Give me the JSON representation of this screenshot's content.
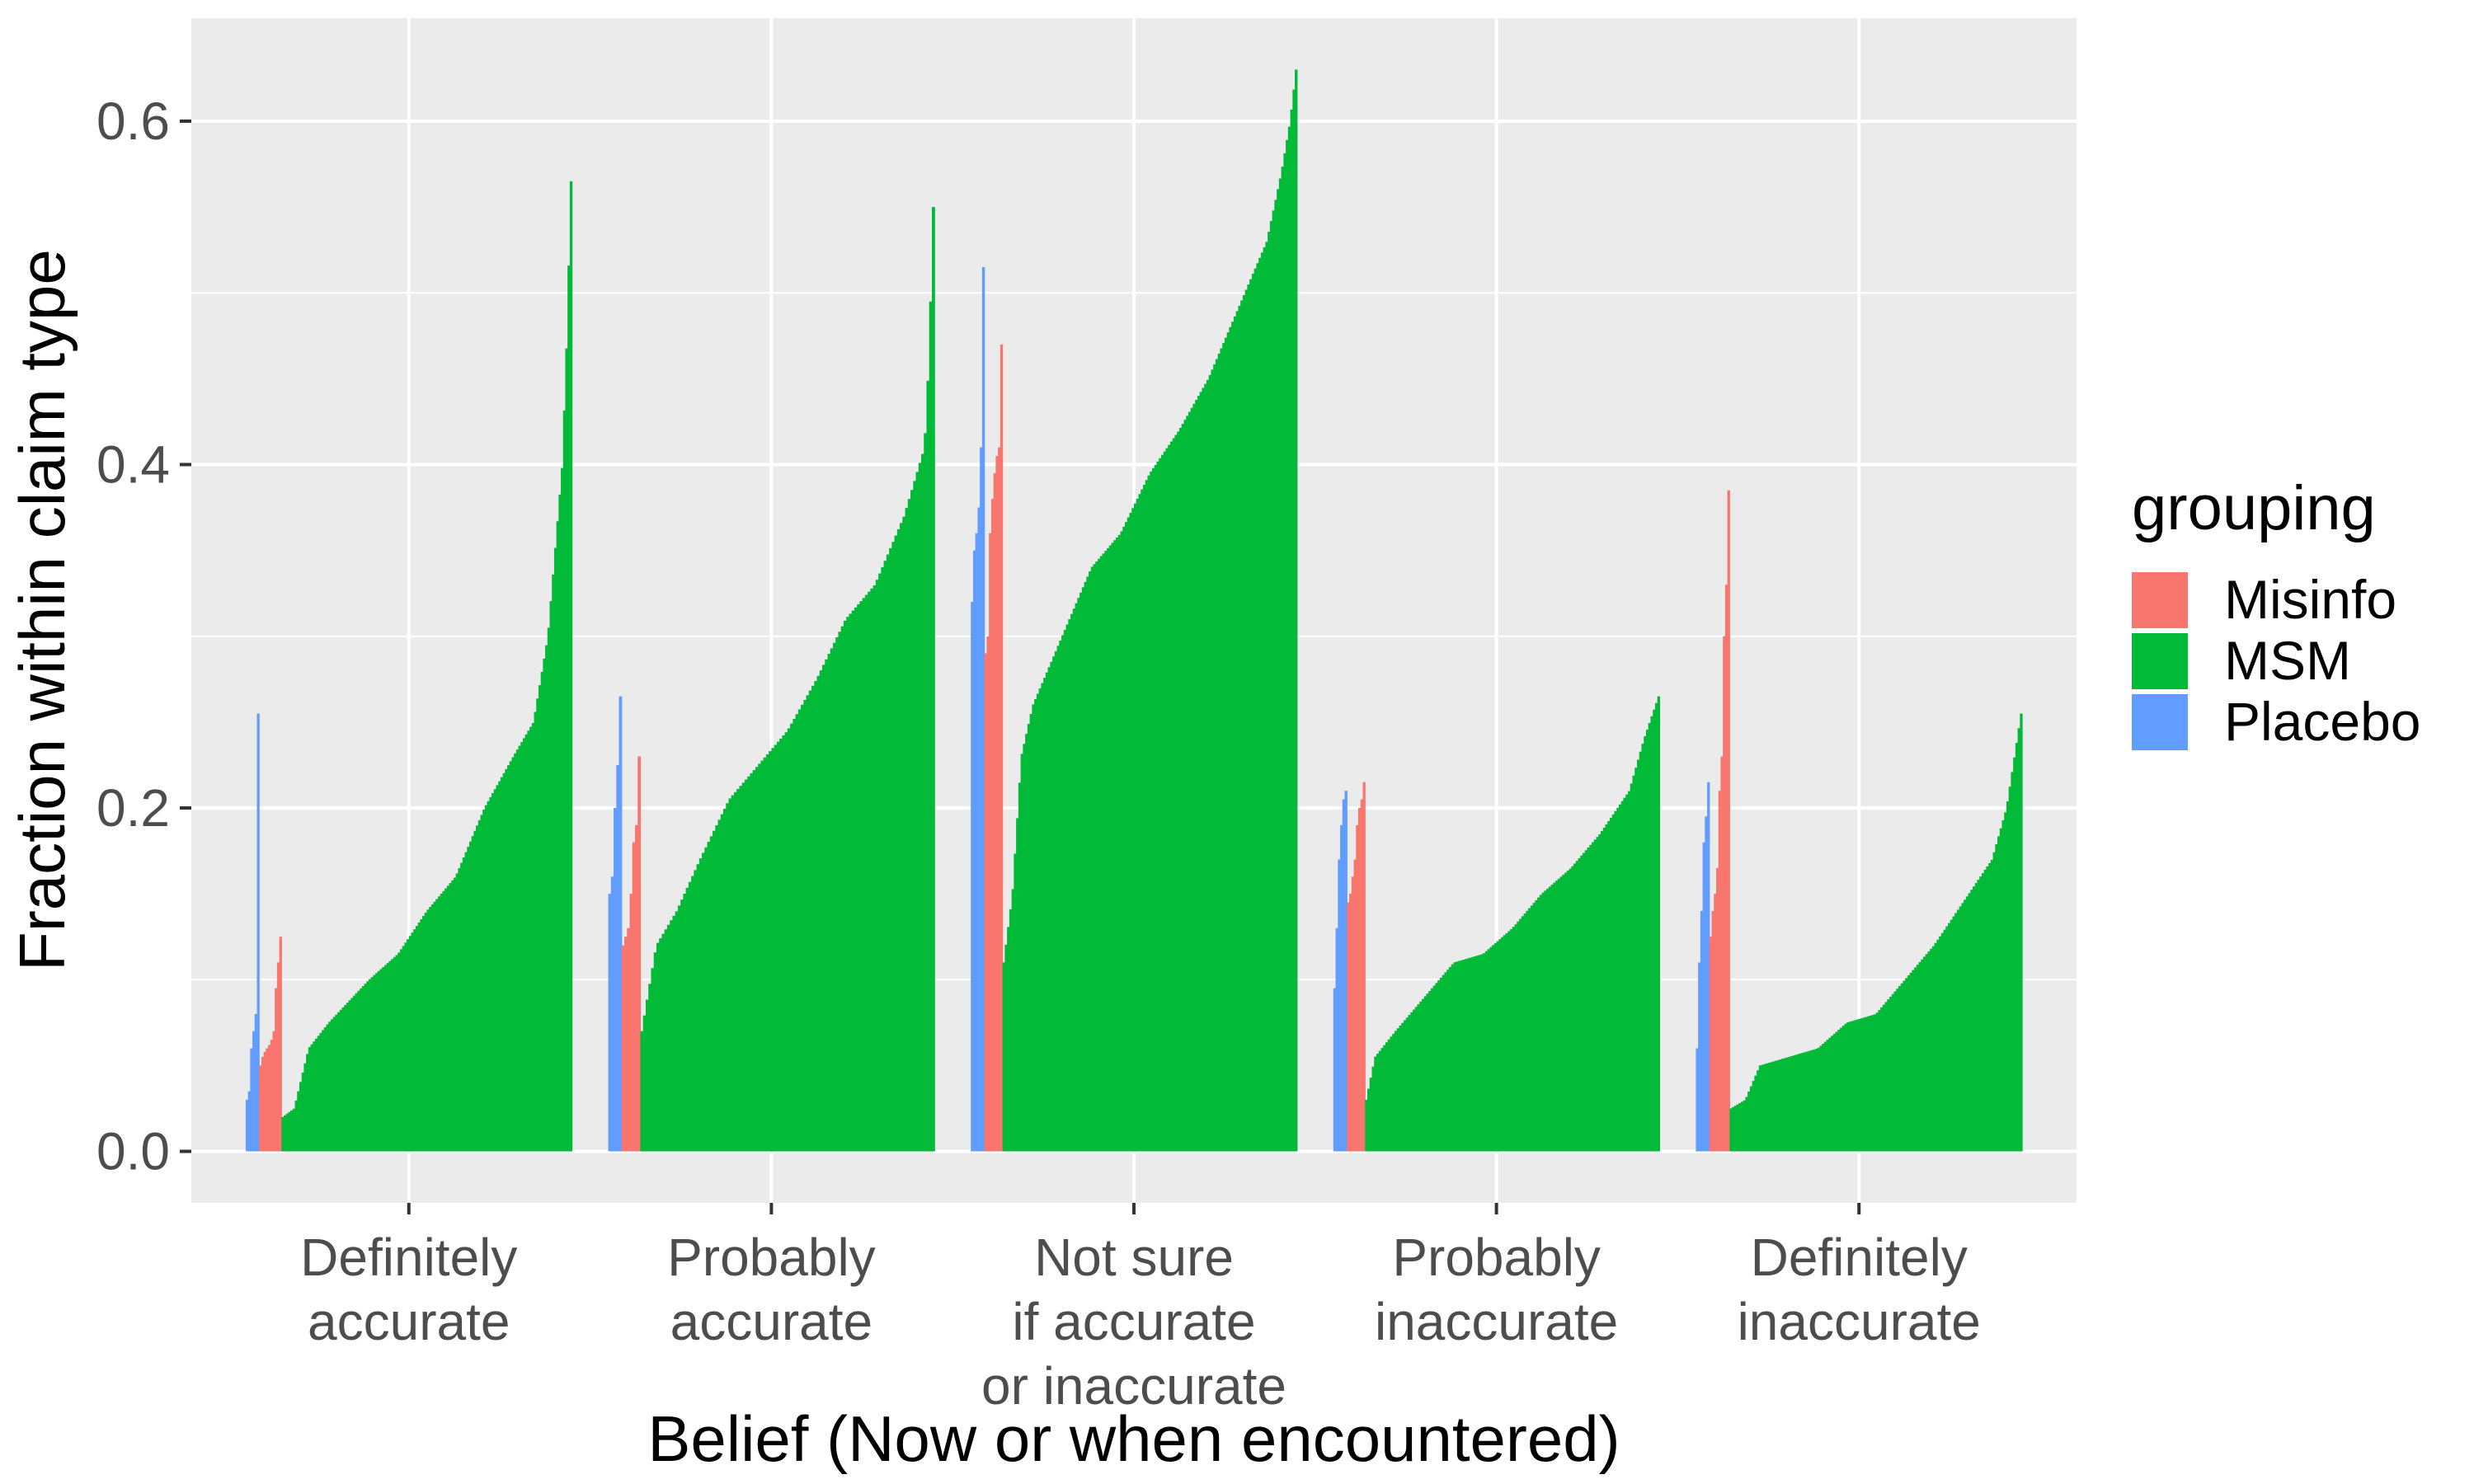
{
  "chart_data": {
    "type": "bar",
    "title": "",
    "xlabel": "Belief (Now or when encountered)",
    "ylabel": "Fraction within claim type",
    "ylim": [
      -0.03,
      0.66
    ],
    "yticks": [
      0.0,
      0.2,
      0.4,
      0.6
    ],
    "ytick_labels": [
      "0.0",
      "0.2",
      "0.4",
      "0.6"
    ],
    "grid": true,
    "legend": {
      "title": "grouping",
      "position": "right"
    },
    "categories": [
      {
        "lines": [
          "Definitely",
          "accurate"
        ]
      },
      {
        "lines": [
          "Probably",
          "accurate"
        ]
      },
      {
        "lines": [
          "Not sure",
          "if accurate",
          "or inaccurate"
        ]
      },
      {
        "lines": [
          "Probably",
          "inaccurate"
        ]
      },
      {
        "lines": [
          "Definitely",
          "inaccurate"
        ]
      }
    ],
    "series": [
      {
        "name": "Misinfo",
        "color": "#F8766D"
      },
      {
        "name": "MSM",
        "color": "#00BA38"
      },
      {
        "name": "Placebo",
        "color": "#619CFF"
      }
    ],
    "groups": [
      {
        "category": "Definitely accurate",
        "Placebo": [
          0.03,
          0.035,
          0.06,
          0.07,
          0.08,
          0.255
        ],
        "Misinfo": [
          0.05,
          0.055,
          0.058,
          0.06,
          0.062,
          0.065,
          0.07,
          0.095,
          0.11,
          0.125
        ],
        "MSM": {
          "n": 130,
          "points": [
            [
              0,
              0.02
            ],
            [
              0.04,
              0.025
            ],
            [
              0.09,
              0.06
            ],
            [
              0.16,
              0.075
            ],
            [
              0.3,
              0.1
            ],
            [
              0.4,
              0.115
            ],
            [
              0.5,
              0.14
            ],
            [
              0.6,
              0.16
            ],
            [
              0.7,
              0.2
            ],
            [
              0.8,
              0.23
            ],
            [
              0.87,
              0.25
            ],
            [
              0.92,
              0.3
            ],
            [
              0.95,
              0.36
            ],
            [
              0.97,
              0.4
            ],
            [
              0.985,
              0.47
            ],
            [
              1.0,
              0.565
            ]
          ]
        }
      },
      {
        "category": "Probably accurate",
        "Placebo": [
          0.15,
          0.16,
          0.2,
          0.225,
          0.265
        ],
        "Misinfo": [
          0.12,
          0.125,
          0.13,
          0.15,
          0.18,
          0.19,
          0.23
        ],
        "MSM": {
          "n": 110,
          "points": [
            [
              0,
              0.07
            ],
            [
              0.05,
              0.12
            ],
            [
              0.12,
              0.14
            ],
            [
              0.2,
              0.17
            ],
            [
              0.3,
              0.205
            ],
            [
              0.4,
              0.225
            ],
            [
              0.5,
              0.245
            ],
            [
              0.6,
              0.275
            ],
            [
              0.7,
              0.31
            ],
            [
              0.8,
              0.33
            ],
            [
              0.9,
              0.37
            ],
            [
              0.97,
              0.41
            ],
            [
              0.985,
              0.46
            ],
            [
              1.0,
              0.55
            ]
          ]
        }
      },
      {
        "category": "Not sure if accurate or inaccurate",
        "Placebo": [
          0.32,
          0.35,
          0.36,
          0.375,
          0.41,
          0.515
        ],
        "Misinfo": [
          0.29,
          0.3,
          0.36,
          0.38,
          0.395,
          0.405,
          0.41,
          0.47
        ],
        "MSM": {
          "n": 130,
          "points": [
            [
              0,
              0.11
            ],
            [
              0.03,
              0.15
            ],
            [
              0.06,
              0.23
            ],
            [
              0.1,
              0.26
            ],
            [
              0.2,
              0.3
            ],
            [
              0.3,
              0.34
            ],
            [
              0.4,
              0.36
            ],
            [
              0.5,
              0.395
            ],
            [
              0.6,
              0.42
            ],
            [
              0.7,
              0.45
            ],
            [
              0.8,
              0.49
            ],
            [
              0.9,
              0.53
            ],
            [
              0.95,
              0.57
            ],
            [
              0.98,
              0.6
            ],
            [
              1.0,
              0.63
            ]
          ]
        }
      },
      {
        "category": "Probably inaccurate",
        "Placebo": [
          0.095,
          0.13,
          0.17,
          0.19,
          0.205,
          0.21
        ],
        "Misinfo": [
          0.145,
          0.15,
          0.16,
          0.17,
          0.19,
          0.2,
          0.205,
          0.215
        ],
        "MSM": {
          "n": 130,
          "points": [
            [
              0,
              0.03
            ],
            [
              0.03,
              0.055
            ],
            [
              0.1,
              0.07
            ],
            [
              0.2,
              0.09
            ],
            [
              0.3,
              0.11
            ],
            [
              0.4,
              0.115
            ],
            [
              0.5,
              0.13
            ],
            [
              0.6,
              0.15
            ],
            [
              0.7,
              0.165
            ],
            [
              0.8,
              0.185
            ],
            [
              0.9,
              0.21
            ],
            [
              0.95,
              0.24
            ],
            [
              1.0,
              0.265
            ]
          ]
        }
      },
      {
        "category": "Definitely inaccurate",
        "Placebo": [
          0.06,
          0.11,
          0.14,
          0.18,
          0.195,
          0.215
        ],
        "Misinfo": [
          0.125,
          0.14,
          0.15,
          0.165,
          0.21,
          0.23,
          0.3,
          0.33,
          0.385
        ],
        "MSM": {
          "n": 130,
          "points": [
            [
              0,
              0.025
            ],
            [
              0.05,
              0.03
            ],
            [
              0.1,
              0.05
            ],
            [
              0.2,
              0.055
            ],
            [
              0.3,
              0.06
            ],
            [
              0.4,
              0.075
            ],
            [
              0.5,
              0.08
            ],
            [
              0.6,
              0.1
            ],
            [
              0.7,
              0.12
            ],
            [
              0.8,
              0.145
            ],
            [
              0.9,
              0.17
            ],
            [
              0.95,
              0.2
            ],
            [
              1.0,
              0.255
            ]
          ]
        }
      }
    ]
  }
}
